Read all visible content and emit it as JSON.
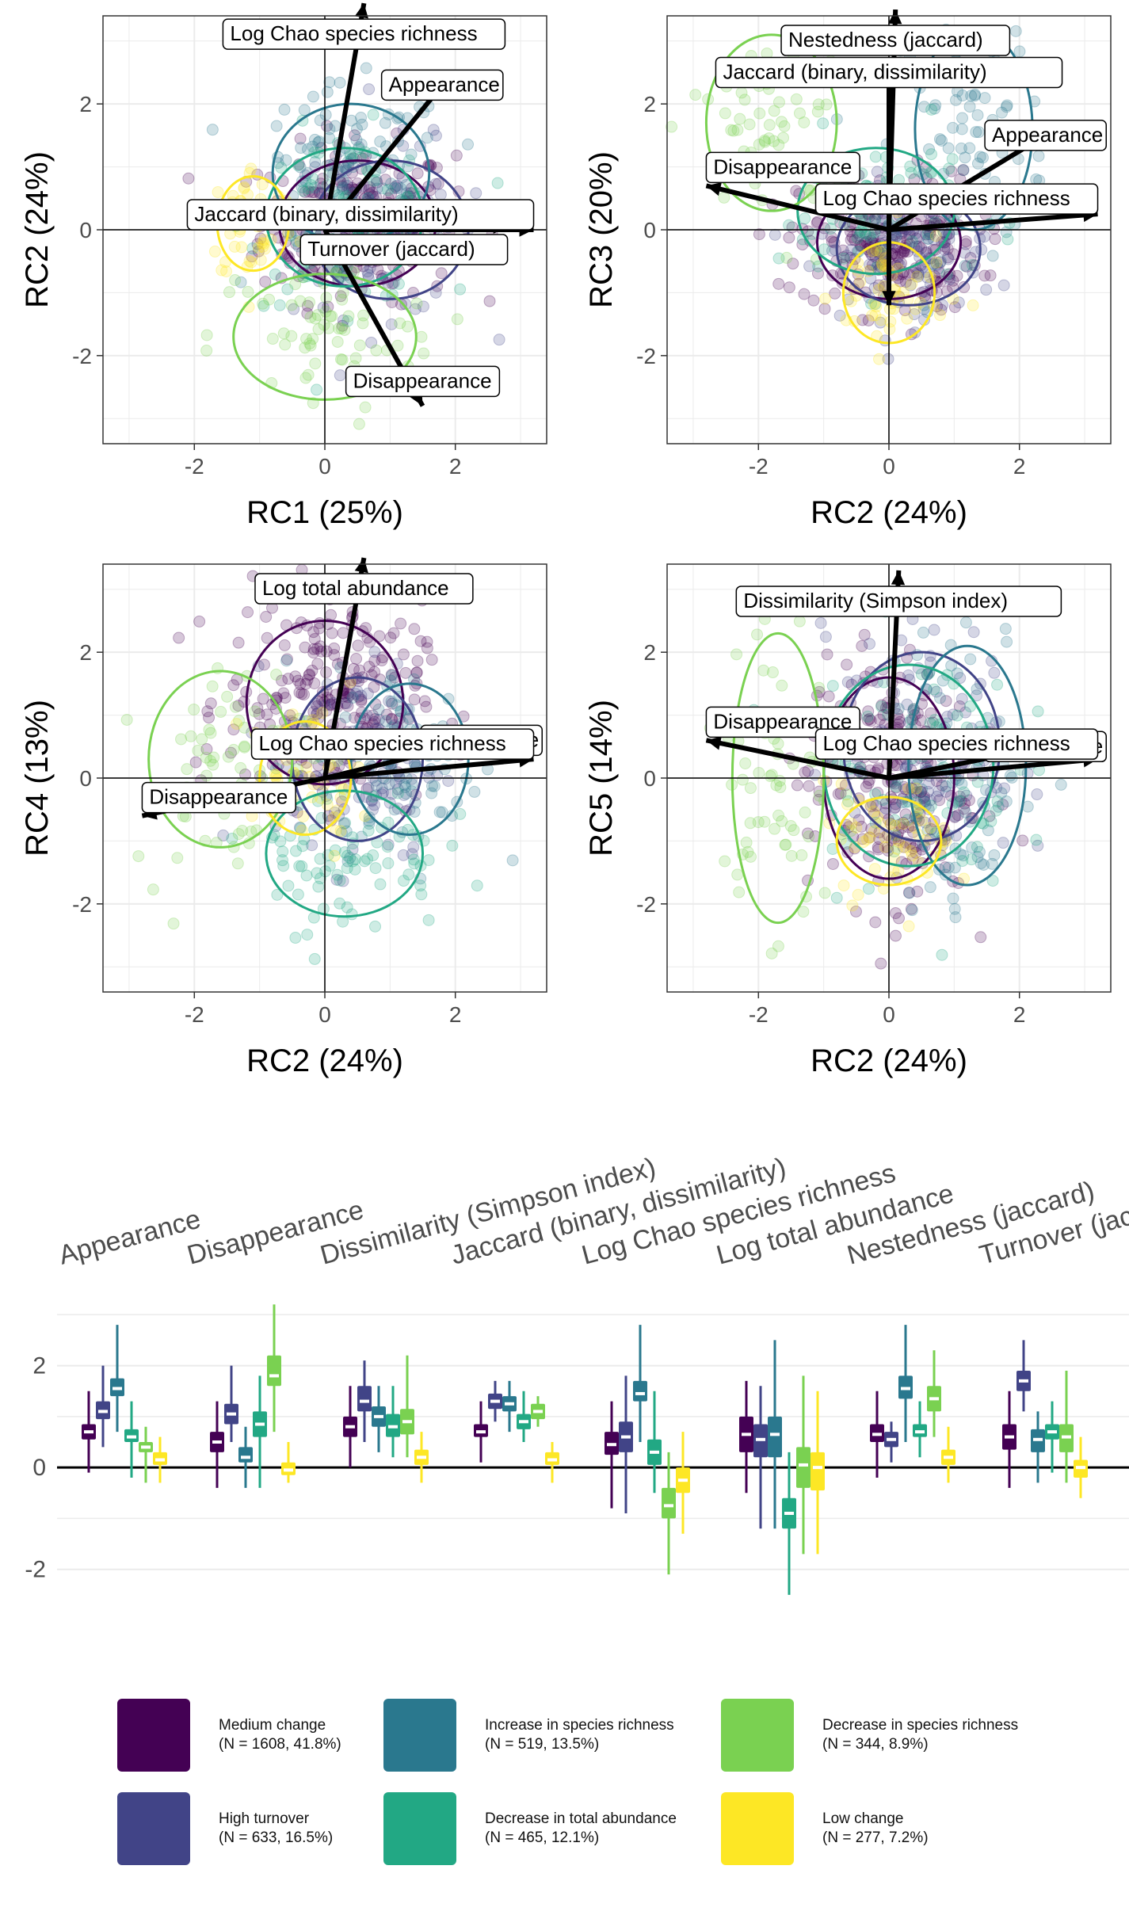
{
  "chart_data": [
    {
      "type": "scatter",
      "xlabel": "RC1 (25%)",
      "ylabel": "RC2 (24%)",
      "xlim": [
        -3.4,
        3.4
      ],
      "ylim": [
        -3.4,
        3.4
      ],
      "xticks": [
        "-2",
        "0",
        "2"
      ],
      "yticks": [
        "-2",
        "0",
        "2"
      ],
      "grid": true,
      "clusters": [
        {
          "group": "Medium change",
          "center": [
            0.5,
            0.1
          ],
          "radius": [
            1.2,
            1.0
          ]
        },
        {
          "group": "High turnover",
          "center": [
            1.0,
            0.0
          ],
          "radius": [
            1.2,
            1.1
          ]
        },
        {
          "group": "Increase in species richness",
          "center": [
            0.4,
            0.9
          ],
          "radius": [
            1.2,
            1.1
          ]
        },
        {
          "group": "Decrease in total abundance",
          "center": [
            0.3,
            0.2
          ],
          "radius": [
            1.2,
            1.1
          ]
        },
        {
          "group": "Decrease in species richness",
          "center": [
            0.0,
            -1.7
          ],
          "radius": [
            1.4,
            1.0
          ]
        },
        {
          "group": "Low change",
          "center": [
            -1.1,
            0.1
          ],
          "radius": [
            0.55,
            0.75
          ]
        }
      ],
      "arrows": [
        {
          "label": "Log Chao species richness",
          "x": 0.6,
          "y": 3.6
        },
        {
          "label": "Appearance",
          "x": 1.8,
          "y": 2.3
        },
        {
          "label": "Jaccard (binary, dissimilarity)",
          "x": 3.2,
          "y": 0.0
        },
        {
          "label": "Turnover (jaccard)",
          "x": 2.8,
          "y": 0.05
        },
        {
          "label": "Disappearance",
          "x": 1.5,
          "y": -2.8
        }
      ]
    },
    {
      "type": "scatter",
      "xlabel": "RC2 (24%)",
      "ylabel": "RC3 (20%)",
      "xlim": [
        -3.4,
        3.4
      ],
      "ylim": [
        -3.4,
        3.4
      ],
      "xticks": [
        "-2",
        "0",
        "2"
      ],
      "yticks": [
        "-2",
        "0",
        "2"
      ],
      "grid": true,
      "clusters": [
        {
          "group": "Medium change",
          "center": [
            0.0,
            -0.2
          ],
          "radius": [
            1.1,
            0.9
          ]
        },
        {
          "group": "High turnover",
          "center": [
            0.3,
            -0.3
          ],
          "radius": [
            1.1,
            0.9
          ]
        },
        {
          "group": "Increase in species richness",
          "center": [
            1.3,
            1.6
          ],
          "radius": [
            0.9,
            1.6
          ]
        },
        {
          "group": "Decrease in total abundance",
          "center": [
            -0.2,
            0.3
          ],
          "radius": [
            1.2,
            1.0
          ]
        },
        {
          "group": "Decrease in species richness",
          "center": [
            -1.8,
            1.7
          ],
          "radius": [
            1.0,
            1.4
          ]
        },
        {
          "group": "Low change",
          "center": [
            0.0,
            -1.0
          ],
          "radius": [
            0.7,
            0.8
          ]
        }
      ],
      "arrows": [
        {
          "label": "Nestedness (jaccard)",
          "x": 0.1,
          "y": 3.5
        },
        {
          "label": "Jaccard (binary, dissimilarity)",
          "x": 0.0,
          "y": 2.5
        },
        {
          "label": "Appearance",
          "x": 2.4,
          "y": 1.5
        },
        {
          "label": "Disappearance",
          "x": -2.8,
          "y": 0.7
        },
        {
          "label": "Log Chao species richness",
          "x": 3.2,
          "y": 0.25
        },
        {
          "label": "",
          "x": 0.0,
          "y": -1.2
        }
      ]
    },
    {
      "type": "scatter",
      "xlabel": "RC2 (24%)",
      "ylabel": "RC4 (13%)",
      "xlim": [
        -3.4,
        3.4
      ],
      "ylim": [
        -3.4,
        3.4
      ],
      "xticks": [
        "-2",
        "0",
        "2"
      ],
      "yticks": [
        "-2",
        "0",
        "2"
      ],
      "grid": true,
      "clusters": [
        {
          "group": "Medium change",
          "center": [
            0.0,
            1.2
          ],
          "radius": [
            1.2,
            1.3
          ]
        },
        {
          "group": "High turnover",
          "center": [
            0.5,
            0.3
          ],
          "radius": [
            1.0,
            1.3
          ]
        },
        {
          "group": "Increase in species richness",
          "center": [
            1.3,
            0.3
          ],
          "radius": [
            0.9,
            1.2
          ]
        },
        {
          "group": "Decrease in total abundance",
          "center": [
            0.3,
            -1.2
          ],
          "radius": [
            1.2,
            1.0
          ]
        },
        {
          "group": "Decrease in species richness",
          "center": [
            -1.6,
            0.3
          ],
          "radius": [
            1.1,
            1.4
          ]
        },
        {
          "group": "Low change",
          "center": [
            -0.3,
            0.0
          ],
          "radius": [
            0.7,
            0.9
          ]
        }
      ],
      "arrows": [
        {
          "label": "Log total abundance",
          "x": 0.6,
          "y": 3.5
        },
        {
          "label": "Appearance",
          "x": 2.4,
          "y": 0.6
        },
        {
          "label": "Log Chao species richness",
          "x": 3.2,
          "y": 0.3
        },
        {
          "label": "Disappearance",
          "x": -2.8,
          "y": -0.6
        }
      ]
    },
    {
      "type": "scatter",
      "xlabel": "RC2 (24%)",
      "ylabel": "RC5 (14%)",
      "xlim": [
        -3.4,
        3.4
      ],
      "ylim": [
        -3.4,
        3.4
      ],
      "xticks": [
        "-2",
        "0",
        "2"
      ],
      "yticks": [
        "-2",
        "0",
        "2"
      ],
      "grid": true,
      "clusters": [
        {
          "group": "Medium change",
          "center": [
            0.0,
            0.0
          ],
          "radius": [
            1.0,
            1.6
          ]
        },
        {
          "group": "High turnover",
          "center": [
            0.5,
            0.5
          ],
          "radius": [
            1.2,
            1.5
          ]
        },
        {
          "group": "Increase in species richness",
          "center": [
            1.2,
            0.2
          ],
          "radius": [
            0.9,
            1.9
          ]
        },
        {
          "group": "Decrease in total abundance",
          "center": [
            0.3,
            0.2
          ],
          "radius": [
            1.3,
            1.6
          ]
        },
        {
          "group": "Decrease in species richness",
          "center": [
            -1.7,
            0.0
          ],
          "radius": [
            0.7,
            2.3
          ]
        },
        {
          "group": "Low change",
          "center": [
            0.0,
            -1.0
          ],
          "radius": [
            0.8,
            0.7
          ]
        }
      ],
      "arrows": [
        {
          "label": "Dissimilarity (Simpson index)",
          "x": 0.15,
          "y": 3.3
        },
        {
          "label": "Appearance",
          "x": 2.4,
          "y": 0.5
        },
        {
          "label": "Disappearance",
          "x": -2.8,
          "y": 0.6
        },
        {
          "label": "Log Chao species richness",
          "x": 3.2,
          "y": 0.3
        }
      ]
    },
    {
      "type": "box",
      "categories": [
        "Appearance",
        "Disappearance",
        "Dissimilarity (Simpson index)",
        "Jaccard (binary, dissimilarity)",
        "Log Chao species richness",
        "Log total abundance",
        "Nestedness (jaccard)",
        "Turnover (jaccard)"
      ],
      "ylim": [
        -3.0,
        3.3
      ],
      "yticks": [
        "-2",
        "0",
        "2"
      ],
      "grid": true,
      "series": [
        {
          "name": "Medium change",
          "boxes": [
            [
              -0.1,
              0.55,
              0.7,
              0.85,
              1.5
            ],
            [
              -0.4,
              0.3,
              0.5,
              0.7,
              1.3
            ],
            [
              0.0,
              0.6,
              0.8,
              1.0,
              1.6
            ],
            [
              0.1,
              0.6,
              0.7,
              0.85,
              1.3
            ],
            [
              -0.8,
              0.25,
              0.45,
              0.7,
              1.3
            ],
            [
              -0.5,
              0.3,
              0.65,
              1.0,
              1.7
            ],
            [
              -0.2,
              0.5,
              0.65,
              0.85,
              1.5
            ],
            [
              -0.4,
              0.35,
              0.6,
              0.85,
              1.5
            ]
          ]
        },
        {
          "name": "High turnover",
          "boxes": [
            [
              0.4,
              0.95,
              1.1,
              1.3,
              2.0
            ],
            [
              0.5,
              0.85,
              1.05,
              1.25,
              2.0
            ],
            [
              0.5,
              1.1,
              1.3,
              1.6,
              2.1
            ],
            [
              0.9,
              1.15,
              1.3,
              1.45,
              1.7
            ],
            [
              -0.9,
              0.3,
              0.6,
              0.9,
              1.8
            ],
            [
              -1.2,
              0.2,
              0.55,
              0.85,
              1.6
            ],
            [
              0.1,
              0.4,
              0.55,
              0.7,
              0.9
            ],
            [
              1.1,
              1.5,
              1.7,
              1.9,
              2.5
            ]
          ]
        },
        {
          "name": "Increase in species richness",
          "boxes": [
            [
              0.7,
              1.4,
              1.55,
              1.75,
              2.8
            ],
            [
              -0.4,
              0.1,
              0.2,
              0.4,
              0.8
            ],
            [
              0.3,
              0.8,
              1.0,
              1.2,
              1.6
            ],
            [
              0.7,
              1.1,
              1.25,
              1.4,
              1.7
            ],
            [
              0.5,
              1.3,
              1.45,
              1.7,
              2.8
            ],
            [
              -1.2,
              0.2,
              0.65,
              1.0,
              2.5
            ],
            [
              0.5,
              1.35,
              1.55,
              1.8,
              2.8
            ],
            [
              -0.3,
              0.3,
              0.55,
              0.75,
              1.1
            ]
          ]
        },
        {
          "name": "Decrease in total abundance",
          "boxes": [
            [
              -0.2,
              0.5,
              0.6,
              0.75,
              1.3
            ],
            [
              -0.4,
              0.6,
              0.85,
              1.1,
              1.8
            ],
            [
              0.2,
              0.6,
              0.8,
              1.05,
              1.6
            ],
            [
              0.5,
              0.75,
              0.9,
              1.05,
              1.5
            ],
            [
              -0.5,
              0.05,
              0.3,
              0.55,
              1.5
            ],
            [
              -2.5,
              -1.2,
              -0.9,
              -0.6,
              0.3
            ],
            [
              0.2,
              0.6,
              0.7,
              0.85,
              1.3
            ],
            [
              -0.1,
              0.55,
              0.7,
              0.85,
              1.3
            ]
          ]
        },
        {
          "name": "Decrease in species richness",
          "boxes": [
            [
              -0.3,
              0.3,
              0.4,
              0.5,
              0.8
            ],
            [
              0.7,
              1.6,
              1.8,
              2.2,
              3.2
            ],
            [
              0.2,
              0.65,
              0.9,
              1.15,
              2.2
            ],
            [
              0.8,
              0.95,
              1.1,
              1.25,
              1.4
            ],
            [
              -2.1,
              -1.0,
              -0.75,
              -0.4,
              0.3
            ],
            [
              -1.7,
              -0.4,
              0.05,
              0.4,
              1.8
            ],
            [
              0.6,
              1.1,
              1.35,
              1.6,
              2.3
            ],
            [
              -0.3,
              0.3,
              0.6,
              0.85,
              1.9
            ]
          ]
        },
        {
          "name": "Low change",
          "boxes": [
            [
              -0.3,
              0.05,
              0.15,
              0.3,
              0.6
            ],
            [
              -0.3,
              -0.15,
              -0.05,
              0.1,
              0.5
            ],
            [
              -0.3,
              0.05,
              0.2,
              0.35,
              0.7
            ],
            [
              -0.3,
              0.05,
              0.15,
              0.3,
              0.5
            ],
            [
              -1.3,
              -0.5,
              -0.25,
              0.0,
              0.7
            ],
            [
              -1.7,
              -0.45,
              0.0,
              0.3,
              1.5
            ],
            [
              -0.3,
              0.05,
              0.2,
              0.35,
              0.8
            ],
            [
              -0.6,
              -0.2,
              0.0,
              0.15,
              0.6
            ]
          ]
        }
      ]
    }
  ],
  "groups": [
    {
      "name": "Medium change",
      "n": "(N = 1608, 41.8%)",
      "color": "#440154"
    },
    {
      "name": "High turnover",
      "n": "(N = 633, 16.5%)",
      "color": "#414487"
    },
    {
      "name": "Increase in species richness",
      "n": "(N = 519, 13.5%)",
      "color": "#2A788E"
    },
    {
      "name": "Decrease in total abundance",
      "n": "(N = 465, 12.1%)",
      "color": "#22A884"
    },
    {
      "name": "Decrease in species richness",
      "n": "(N = 344, 8.9%)",
      "color": "#7AD151"
    },
    {
      "name": "Low change",
      "n": "(N = 277, 7.2%)",
      "color": "#FDE725"
    }
  ]
}
